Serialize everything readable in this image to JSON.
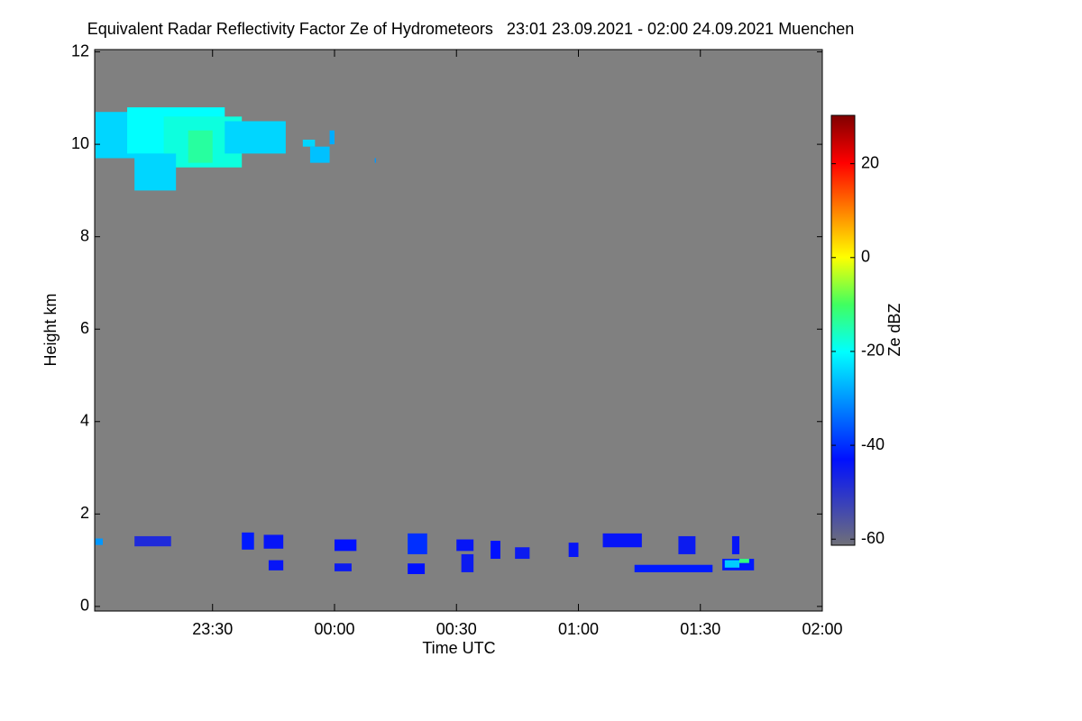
{
  "chart_data": {
    "type": "heatmap",
    "title": "Equivalent Radar Reflectivity Factor Ze of Hydrometeors   23:01 23.09.2021 - 02:00 24.09.2021 Muenchen",
    "x_label": "Time UTC",
    "y_label": "Height km",
    "colorbar_label": "Ze dBZ",
    "xlim": [
      23.0167,
      26
    ],
    "xticks": [
      {
        "value": 23.5,
        "label": "23:30"
      },
      {
        "value": 24,
        "label": "00:00"
      },
      {
        "value": 24.5,
        "label": "00:30"
      },
      {
        "value": 25,
        "label": "01:00"
      },
      {
        "value": 25.5,
        "label": "01:30"
      },
      {
        "value": 26,
        "label": "02:00"
      }
    ],
    "ylim": [
      -0.1,
      12.05
    ],
    "yticks": [
      0,
      2,
      4,
      6,
      8,
      10,
      12
    ],
    "zlim": [
      -61.3,
      30.3
    ],
    "zticks": [
      -60,
      -40,
      -20,
      0,
      20
    ],
    "background": "#808080",
    "cells": [
      {
        "x": [
          23.02,
          23.3
        ],
        "y": [
          9.7,
          10.7
        ],
        "value": -24
      },
      {
        "x": [
          23.15,
          23.55
        ],
        "y": [
          9.8,
          10.8
        ],
        "value": -20
      },
      {
        "x": [
          23.3,
          23.62
        ],
        "y": [
          9.5,
          10.6
        ],
        "value": -18
      },
      {
        "x": [
          23.55,
          23.8
        ],
        "y": [
          9.8,
          10.5
        ],
        "value": -24
      },
      {
        "x": [
          23.18,
          23.35
        ],
        "y": [
          9.0,
          9.8
        ],
        "value": -24
      },
      {
        "x": [
          23.4,
          23.5
        ],
        "y": [
          9.6,
          10.3
        ],
        "value": -14
      },
      {
        "x": [
          23.87,
          23.92
        ],
        "y": [
          9.95,
          10.1
        ],
        "value": -24
      },
      {
        "x": [
          23.9,
          23.98
        ],
        "y": [
          9.6,
          9.95
        ],
        "value": -26
      },
      {
        "x": [
          23.98,
          24.0
        ],
        "y": [
          10.0,
          10.3
        ],
        "value": -28
      },
      {
        "x": [
          24.165,
          24.17
        ],
        "y": [
          9.6,
          9.7
        ],
        "value": -30
      },
      {
        "x": [
          23.62,
          23.67
        ],
        "y": [
          1.23,
          1.6
        ],
        "value": -42
      },
      {
        "x": [
          23.71,
          23.79
        ],
        "y": [
          1.25,
          1.55
        ],
        "value": -44
      },
      {
        "x": [
          23.73,
          23.79
        ],
        "y": [
          0.78,
          1.0
        ],
        "value": -44
      },
      {
        "x": [
          24.0,
          24.09
        ],
        "y": [
          1.2,
          1.45
        ],
        "value": -43
      },
      {
        "x": [
          24.0,
          24.07
        ],
        "y": [
          0.76,
          0.93
        ],
        "value": -45
      },
      {
        "x": [
          24.3,
          24.38
        ],
        "y": [
          1.13,
          1.58
        ],
        "value": -40
      },
      {
        "x": [
          24.3,
          24.37
        ],
        "y": [
          0.7,
          0.93
        ],
        "value": -43
      },
      {
        "x": [
          24.5,
          24.57
        ],
        "y": [
          1.2,
          1.45
        ],
        "value": -44
      },
      {
        "x": [
          24.52,
          24.57
        ],
        "y": [
          0.74,
          1.13
        ],
        "value": -45
      },
      {
        "x": [
          24.64,
          24.68
        ],
        "y": [
          1.03,
          1.42
        ],
        "value": -43
      },
      {
        "x": [
          24.74,
          24.8
        ],
        "y": [
          1.03,
          1.28
        ],
        "value": -45
      },
      {
        "x": [
          24.96,
          25.0
        ],
        "y": [
          1.07,
          1.38
        ],
        "value": -44
      },
      {
        "x": [
          25.1,
          25.26
        ],
        "y": [
          1.28,
          1.58
        ],
        "value": -44
      },
      {
        "x": [
          25.23,
          25.55
        ],
        "y": [
          0.74,
          0.9
        ],
        "value": -42
      },
      {
        "x": [
          25.41,
          25.48
        ],
        "y": [
          1.13,
          1.52
        ],
        "value": -45
      },
      {
        "x": [
          25.59,
          25.72
        ],
        "y": [
          0.78,
          1.03
        ],
        "value": -42
      },
      {
        "x": [
          25.63,
          25.66
        ],
        "y": [
          1.13,
          1.52
        ],
        "value": -44
      },
      {
        "x": [
          25.6,
          25.66
        ],
        "y": [
          0.84,
          1.0
        ],
        "value": -25
      },
      {
        "x": [
          25.66,
          25.7
        ],
        "y": [
          0.94,
          1.03
        ],
        "value": -12
      },
      {
        "x": [
          23.18,
          23.33
        ],
        "y": [
          1.3,
          1.52
        ],
        "value": -48
      },
      {
        "x": [
          23.02,
          23.05
        ],
        "y": [
          1.33,
          1.47
        ],
        "value": -30
      }
    ]
  }
}
